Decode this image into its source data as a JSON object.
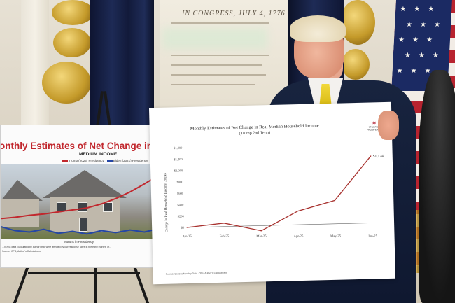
{
  "main_poster": {
    "title": "Monthly Estimates of Net Change in Real Median Household Income",
    "subtitle": "(Trump 2nd Term)",
    "logo_text": "UNLEASH PROSPERITY",
    "source": "Source: Census Monthly Data, CPS, Author's Calculations",
    "value_label": "$1,174",
    "chart_data": {
      "type": "line",
      "title": "Monthly Estimates of Net Change in Real Median Household Income",
      "subtitle": "(Trump 2nd Term)",
      "xlabel": "",
      "ylabel": "Change in Real Household Income, 2024$",
      "categories": [
        "Jan-25",
        "Feb-25",
        "Mar-25",
        "Apr-25",
        "May-25",
        "Jun-25"
      ],
      "y_ticks": [
        "$0",
        "$200",
        "$400",
        "$600",
        "$800",
        "$1,000",
        "$1,200",
        "$1,400"
      ],
      "ylim": [
        0,
        1400
      ],
      "series": [
        {
          "values": [
            0,
            60,
            -90,
            240,
            410,
            1174
          ],
          "color": "#a8322f"
        }
      ],
      "grid": false,
      "data_labels": [
        "$1,174"
      ]
    }
  },
  "left_poster": {
    "title": "onthly Estimates of Net Change in Real Househol",
    "subtitle": "MEDIUM INCOME",
    "legend": [
      {
        "name": "Trump (2025) Presidency",
        "color": "#c1272d"
      },
      {
        "name": "Biden (2021) Presidency",
        "color": "#2446a6"
      }
    ],
    "axis_label": "Months in Presidency",
    "footnote": "...(CPS) data (calculated by author) that were affected by low response rates in the early months of...",
    "footnote2": "Source: CPS, Author's Calculations",
    "chart_data": {
      "type": "line",
      "title": "onthly Estimates of Net Change in Real Househol",
      "subtitle": "MEDIUM INCOME",
      "xlabel": "Months in Presidency",
      "ylabel": "",
      "series": [
        {
          "name": "Trump (2025) Presidency",
          "color": "#c1272d",
          "values": [
            0.3,
            0.32,
            0.35,
            0.37,
            0.4,
            0.43,
            0.46,
            0.52,
            0.6,
            0.7,
            0.82,
            0.95
          ]
        },
        {
          "name": "Biden (2021) Presidency",
          "color": "#2446a6",
          "values": [
            0.18,
            0.12,
            0.1,
            0.14,
            0.08,
            0.11,
            0.07,
            0.12,
            0.09,
            0.13,
            0.1,
            0.15
          ]
        }
      ]
    }
  },
  "wall_panel": {
    "heading": "IN CONGRESS, JULY 4, 1776"
  },
  "colors": {
    "curtain": "#1d2a55",
    "gold": "#c49a2a",
    "flag_red": "#b8232f",
    "flag_blue": "#1b2a63",
    "suit": "#18243f",
    "tie": "#f2d93b"
  }
}
